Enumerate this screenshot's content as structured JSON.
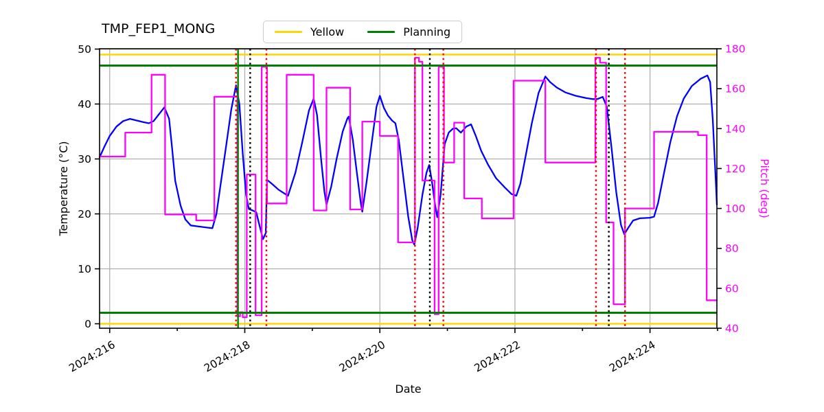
{
  "title": "TMP_FEP1_MONG",
  "legend": {
    "items": [
      {
        "label": "Yellow",
        "color": "#FFD700"
      },
      {
        "label": "Planning",
        "color": "#008000"
      }
    ]
  },
  "chart_data": {
    "type": "line",
    "title": "TMP_FEP1_MONG",
    "xlabel": "Date",
    "ylabel_left": "Temperature (°C)",
    "ylabel_right": "Pitch (deg)",
    "x_unit": "year:day-of-year",
    "x_range": [
      215.85,
      224.99
    ],
    "temp_range": [
      -0.81,
      50.06
    ],
    "pitch_range": [
      40,
      180
    ],
    "grid": true,
    "legend_position": "top-center",
    "x_major_ticks": [
      {
        "value": 216,
        "label": "2024:216"
      },
      {
        "value": 218,
        "label": "2024:218"
      },
      {
        "value": 220,
        "label": "2024:220"
      },
      {
        "value": 222,
        "label": "2024:222"
      },
      {
        "value": 224,
        "label": "2024:224"
      }
    ],
    "x_minor_ticks": [
      217,
      219,
      221,
      223,
      225
    ],
    "y_left_ticks": [
      0,
      10,
      20,
      30,
      40,
      50
    ],
    "y_right_ticks": [
      40,
      60,
      80,
      100,
      120,
      140,
      160,
      180
    ],
    "colors": {
      "temperature": "#0000FF",
      "pitch": "#FF00FF",
      "yellow_limit": "#FFD700",
      "planning_limit": "#008000",
      "red_event": "#FF0000",
      "black_event": "#000000",
      "grid": "#B0B0B0",
      "axis": "#000000"
    },
    "series": [
      {
        "name": "Temperature",
        "axis": "left",
        "style": "smooth",
        "color": "#0000FF",
        "points": [
          [
            215.85,
            30.3
          ],
          [
            215.92,
            32.2
          ],
          [
            216.0,
            34.2
          ],
          [
            216.1,
            35.9
          ],
          [
            216.2,
            36.9
          ],
          [
            216.3,
            37.3
          ],
          [
            216.4,
            37.0
          ],
          [
            216.5,
            36.7
          ],
          [
            216.58,
            36.5
          ],
          [
            216.65,
            36.9
          ],
          [
            216.72,
            38.0
          ],
          [
            216.81,
            39.4
          ],
          [
            216.88,
            37.3
          ],
          [
            216.92,
            32.5
          ],
          [
            216.97,
            26.0
          ],
          [
            217.05,
            21.5
          ],
          [
            217.12,
            19.0
          ],
          [
            217.2,
            17.9
          ],
          [
            217.32,
            17.7
          ],
          [
            217.45,
            17.5
          ],
          [
            217.52,
            17.4
          ],
          [
            217.58,
            20.0
          ],
          [
            217.65,
            26.0
          ],
          [
            217.72,
            32.0
          ],
          [
            217.8,
            39.0
          ],
          [
            217.87,
            43.4
          ],
          [
            217.92,
            40.0
          ],
          [
            217.97,
            31.0
          ],
          [
            218.02,
            23.5
          ],
          [
            218.06,
            20.9
          ],
          [
            218.12,
            20.6
          ],
          [
            218.17,
            20.3
          ],
          [
            218.22,
            17.8
          ],
          [
            218.27,
            15.4
          ],
          [
            218.31,
            16.5
          ],
          [
            218.33,
            26.2
          ],
          [
            218.4,
            25.5
          ],
          [
            218.5,
            24.4
          ],
          [
            218.64,
            23.3
          ],
          [
            218.75,
            27.5
          ],
          [
            218.85,
            33.0
          ],
          [
            218.95,
            38.8
          ],
          [
            219.02,
            41.0
          ],
          [
            219.07,
            38.0
          ],
          [
            219.13,
            30.0
          ],
          [
            219.18,
            24.0
          ],
          [
            219.21,
            21.7
          ],
          [
            219.28,
            25.0
          ],
          [
            219.36,
            30.0
          ],
          [
            219.45,
            35.0
          ],
          [
            219.52,
            37.4
          ],
          [
            219.54,
            37.7
          ],
          [
            219.6,
            33.5
          ],
          [
            219.66,
            27.5
          ],
          [
            219.72,
            21.8
          ],
          [
            219.74,
            20.4
          ],
          [
            219.8,
            25.5
          ],
          [
            219.88,
            33.0
          ],
          [
            219.95,
            39.5
          ],
          [
            220.0,
            41.5
          ],
          [
            220.06,
            39.3
          ],
          [
            220.12,
            37.9
          ],
          [
            220.18,
            37.0
          ],
          [
            220.23,
            36.5
          ],
          [
            220.28,
            33.5
          ],
          [
            220.34,
            27.5
          ],
          [
            220.42,
            19.5
          ],
          [
            220.48,
            15.2
          ],
          [
            220.51,
            14.4
          ],
          [
            220.56,
            17.5
          ],
          [
            220.63,
            23.5
          ],
          [
            220.69,
            27.5
          ],
          [
            220.73,
            28.9
          ],
          [
            220.77,
            26.0
          ],
          [
            220.82,
            21.5
          ],
          [
            220.85,
            19.4
          ],
          [
            220.9,
            23.5
          ],
          [
            220.96,
            32.7
          ],
          [
            221.02,
            34.8
          ],
          [
            221.08,
            35.5
          ],
          [
            221.13,
            35.6
          ],
          [
            221.2,
            34.8
          ],
          [
            221.28,
            35.9
          ],
          [
            221.35,
            36.3
          ],
          [
            221.42,
            34.2
          ],
          [
            221.5,
            31.5
          ],
          [
            221.6,
            29.0
          ],
          [
            221.72,
            26.5
          ],
          [
            221.85,
            24.8
          ],
          [
            221.95,
            23.6
          ],
          [
            222.02,
            23.3
          ],
          [
            222.08,
            25.5
          ],
          [
            222.15,
            30.0
          ],
          [
            222.25,
            36.5
          ],
          [
            222.35,
            42.0
          ],
          [
            222.45,
            45.0
          ],
          [
            222.52,
            44.0
          ],
          [
            222.62,
            43.0
          ],
          [
            222.75,
            42.1
          ],
          [
            222.9,
            41.5
          ],
          [
            223.05,
            41.1
          ],
          [
            223.15,
            40.9
          ],
          [
            223.22,
            40.9
          ],
          [
            223.3,
            41.3
          ],
          [
            223.36,
            39.5
          ],
          [
            223.43,
            32.0
          ],
          [
            223.5,
            24.0
          ],
          [
            223.57,
            18.0
          ],
          [
            223.62,
            16.3
          ],
          [
            223.68,
            17.5
          ],
          [
            223.75,
            18.8
          ],
          [
            223.85,
            19.2
          ],
          [
            224.0,
            19.3
          ],
          [
            224.06,
            19.5
          ],
          [
            224.12,
            22.0
          ],
          [
            224.2,
            27.0
          ],
          [
            224.3,
            33.0
          ],
          [
            224.4,
            37.8
          ],
          [
            224.5,
            41.0
          ],
          [
            224.62,
            43.3
          ],
          [
            224.75,
            44.6
          ],
          [
            224.85,
            45.2
          ],
          [
            224.89,
            44.0
          ],
          [
            224.93,
            37.0
          ],
          [
            224.97,
            27.0
          ],
          [
            224.99,
            21.7
          ]
        ]
      },
      {
        "name": "Pitch",
        "axis": "right",
        "style": "step-post",
        "color": "#FF00FF",
        "points": [
          [
            215.85,
            126
          ],
          [
            216.23,
            138
          ],
          [
            216.62,
            167
          ],
          [
            216.82,
            97
          ],
          [
            217.28,
            94
          ],
          [
            217.55,
            156
          ],
          [
            217.89,
            46
          ],
          [
            217.93,
            48
          ],
          [
            217.97,
            45.5
          ],
          [
            218.03,
            117
          ],
          [
            218.16,
            46.5
          ],
          [
            218.25,
            171
          ],
          [
            218.33,
            102.5
          ],
          [
            218.62,
            167
          ],
          [
            219.02,
            99
          ],
          [
            219.21,
            160.5
          ],
          [
            219.56,
            99.5
          ],
          [
            219.74,
            143.5
          ],
          [
            220.0,
            136.3
          ],
          [
            220.27,
            83
          ],
          [
            220.52,
            175.5
          ],
          [
            220.58,
            173.5
          ],
          [
            220.63,
            114
          ],
          [
            220.81,
            47
          ],
          [
            220.87,
            171
          ],
          [
            220.95,
            123
          ],
          [
            221.1,
            143
          ],
          [
            221.25,
            105
          ],
          [
            221.51,
            95
          ],
          [
            221.98,
            164
          ],
          [
            222.45,
            123
          ],
          [
            223.19,
            175.5
          ],
          [
            223.26,
            173
          ],
          [
            223.35,
            93
          ],
          [
            223.46,
            52
          ],
          [
            223.63,
            100
          ],
          [
            224.06,
            138.4
          ],
          [
            224.71,
            136.7
          ],
          [
            224.84,
            54
          ],
          [
            224.99,
            54
          ]
        ]
      }
    ],
    "threshold_lines": [
      {
        "name": "yellow-high",
        "axis": "left",
        "value": 49,
        "color": "#FFD700",
        "width": 2.5
      },
      {
        "name": "yellow-low",
        "axis": "left",
        "value": 0,
        "color": "#FFD700",
        "width": 2.5
      },
      {
        "name": "planning-high",
        "axis": "left",
        "value": 47,
        "color": "#008000",
        "width": 3
      },
      {
        "name": "planning-low",
        "axis": "left",
        "value": 2,
        "color": "#008000",
        "width": 3
      }
    ],
    "event_lines": [
      {
        "x": 217.87,
        "color": "#FF0000",
        "style": "dotted"
      },
      {
        "x": 217.9,
        "color": "#008000",
        "style": "solid"
      },
      {
        "x": 218.08,
        "color": "#000000",
        "style": "dotted"
      },
      {
        "x": 218.32,
        "color": "#FF0000",
        "style": "dotted"
      },
      {
        "x": 220.52,
        "color": "#FF0000",
        "style": "dotted"
      },
      {
        "x": 220.74,
        "color": "#000000",
        "style": "dotted"
      },
      {
        "x": 220.94,
        "color": "#FF0000",
        "style": "dotted"
      },
      {
        "x": 223.2,
        "color": "#FF0000",
        "style": "dotted"
      },
      {
        "x": 223.39,
        "color": "#000000",
        "style": "dotted"
      },
      {
        "x": 223.63,
        "color": "#FF0000",
        "style": "dotted"
      }
    ]
  }
}
